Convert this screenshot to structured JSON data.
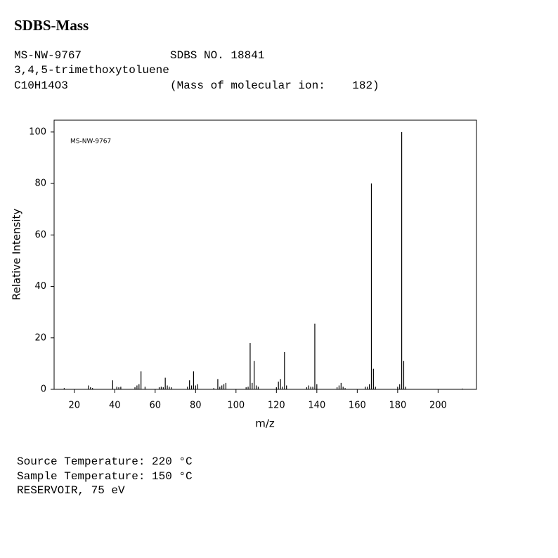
{
  "header": {
    "title": "SDBS-Mass",
    "id": "MS-NW-9767",
    "sdbs_no": "SDBS NO. 18841",
    "compound": "3,4,5-trimethoxytoluene",
    "formula": "C10H14O3",
    "molecular_ion": "(Mass of molecular ion:    182)"
  },
  "chart_data": {
    "type": "bar",
    "annotation": "MS-NW-9767",
    "x_label": "m/z",
    "y_label": "Relative Intensity",
    "color": "#000000",
    "x": [
      15,
      27,
      28,
      29,
      39,
      41,
      42,
      43,
      50,
      51,
      52,
      53,
      55,
      62,
      63,
      64,
      65,
      66,
      67,
      68,
      76,
      77,
      78,
      79,
      80,
      81,
      89,
      91,
      92,
      93,
      94,
      95,
      105,
      106,
      107,
      108,
      109,
      110,
      111,
      120,
      121,
      122,
      123,
      124,
      125,
      135,
      136,
      137,
      138,
      139,
      140,
      150,
      151,
      152,
      153,
      154,
      164,
      165,
      166,
      167,
      168,
      169,
      180,
      181,
      182,
      183,
      184,
      212
    ],
    "values": [
      0.5,
      1.5,
      0.8,
      0.5,
      3.5,
      1,
      0.8,
      1,
      0.8,
      1.5,
      2,
      7,
      1,
      0.8,
      1,
      0.8,
      4.5,
      1.5,
      1,
      0.8,
      1,
      3.5,
      1.5,
      7,
      1.5,
      2,
      0.5,
      4,
      1,
      1.5,
      2,
      2.5,
      0.8,
      1,
      18,
      2.5,
      11,
      1.5,
      1,
      0.8,
      3,
      4,
      1,
      14.5,
      1.5,
      0.8,
      1.5,
      1,
      1,
      25.5,
      2,
      0.8,
      1.5,
      2.5,
      1,
      0.5,
      1,
      1,
      2,
      80,
      8,
      1,
      1,
      2,
      100,
      11,
      1,
      0.3
    ],
    "xlim": [
      10,
      219
    ],
    "ylim": [
      0,
      104.6
    ],
    "xticks": [
      20,
      40,
      60,
      80,
      100,
      120,
      140,
      160,
      180,
      200
    ],
    "yticks": [
      0,
      20,
      40,
      60,
      80,
      100
    ]
  },
  "footer": {
    "source_temp": "Source Temperature: 220 °C",
    "sample_temp": "Sample Temperature: 150 °C",
    "reservoir": "RESERVOIR, 75 eV"
  }
}
